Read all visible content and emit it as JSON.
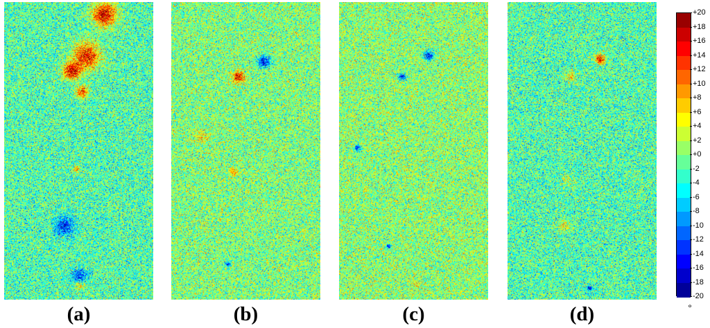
{
  "panels": [
    {
      "label": "(a)",
      "hotspots": [
        {
          "u": 0.67,
          "v": 0.04,
          "value": 20,
          "r": 0.1
        },
        {
          "u": 0.55,
          "v": 0.18,
          "value": 18,
          "r": 0.11
        },
        {
          "u": 0.45,
          "v": 0.23,
          "value": 20,
          "r": 0.07
        },
        {
          "u": 0.52,
          "v": 0.3,
          "value": 16,
          "r": 0.05
        },
        {
          "u": 0.48,
          "v": 0.56,
          "value": 10,
          "r": 0.03
        },
        {
          "u": 0.5,
          "v": 0.95,
          "value": 8,
          "r": 0.04
        },
        {
          "u": 0.4,
          "v": 0.75,
          "value": -16,
          "r": 0.08
        },
        {
          "u": 0.5,
          "v": 0.92,
          "value": -16,
          "r": 0.06
        }
      ]
    },
    {
      "label": "(b)",
      "hotspots": [
        {
          "u": 0.45,
          "v": 0.25,
          "value": 18,
          "r": 0.05
        },
        {
          "u": 0.62,
          "v": 0.2,
          "value": -18,
          "r": 0.05
        },
        {
          "u": 0.42,
          "v": 0.57,
          "value": 8,
          "r": 0.04
        },
        {
          "u": 0.38,
          "v": 0.88,
          "value": -18,
          "r": 0.02
        },
        {
          "u": 0.2,
          "v": 0.45,
          "value": 6,
          "r": 0.06
        }
      ]
    },
    {
      "label": "(c)",
      "hotspots": [
        {
          "u": 0.6,
          "v": 0.18,
          "value": -18,
          "r": 0.04
        },
        {
          "u": 0.42,
          "v": 0.25,
          "value": -16,
          "r": 0.03
        },
        {
          "u": 0.12,
          "v": 0.49,
          "value": -14,
          "r": 0.03
        },
        {
          "u": 0.33,
          "v": 0.82,
          "value": -18,
          "r": 0.02
        },
        {
          "u": 0.52,
          "v": 0.95,
          "value": 8,
          "r": 0.02
        }
      ]
    },
    {
      "label": "(d)",
      "hotspots": [
        {
          "u": 0.62,
          "v": 0.19,
          "value": 20,
          "r": 0.04
        },
        {
          "u": 0.42,
          "v": 0.25,
          "value": 8,
          "r": 0.04
        },
        {
          "u": 0.38,
          "v": 0.75,
          "value": 6,
          "r": 0.05
        },
        {
          "u": 0.55,
          "v": 0.96,
          "value": -18,
          "r": 0.02
        },
        {
          "u": 0.4,
          "v": 0.6,
          "value": 4,
          "r": 0.05
        }
      ]
    }
  ],
  "colorbar": {
    "min": -20,
    "max": 20,
    "step": 2,
    "ticks": [
      "+20",
      "+18",
      "+16",
      "+14",
      "+12",
      "+10",
      "+8",
      "+6",
      "+4",
      "+2",
      "+0",
      "-2",
      "-4",
      "-6",
      "-8",
      "-10",
      "-12",
      "-14",
      "-16",
      "-18",
      "-20"
    ],
    "unit": "°"
  }
}
